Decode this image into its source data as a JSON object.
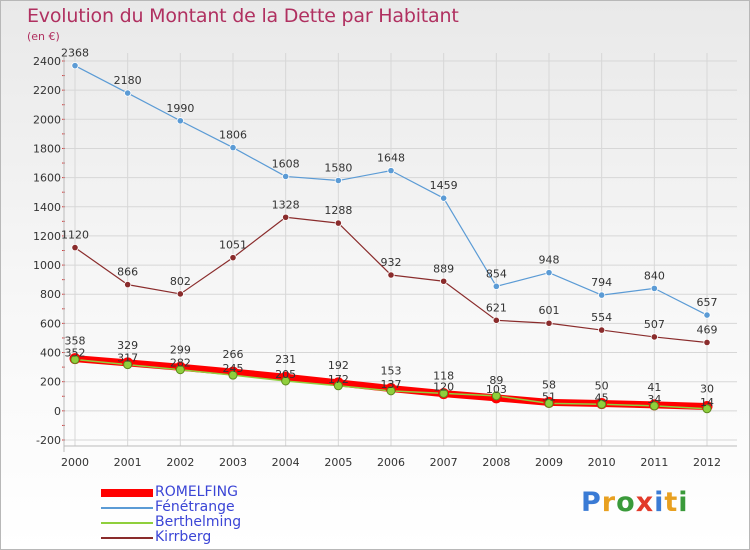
{
  "header": {
    "title": "Evolution du Montant de la Dette par Habitant",
    "subtitle": "(en €)"
  },
  "brand": {
    "letters": [
      {
        "ch": "P",
        "color": "#3a7bd5"
      },
      {
        "ch": "r",
        "color": "#e8a020"
      },
      {
        "ch": "o",
        "color": "#3a9a3a"
      },
      {
        "ch": "x",
        "color": "#e23a2a"
      },
      {
        "ch": "i",
        "color": "#3a7bd5"
      },
      {
        "ch": "t",
        "color": "#e8a020"
      },
      {
        "ch": "i",
        "color": "#3a9a3a"
      }
    ]
  },
  "chart_data": {
    "type": "line",
    "title": "Evolution du Montant de la Dette par Habitant",
    "subtitle": "(en €)",
    "x": [
      2000,
      2001,
      2002,
      2003,
      2004,
      2005,
      2006,
      2007,
      2008,
      2009,
      2010,
      2011,
      2012
    ],
    "ylim": [
      -200,
      2400
    ],
    "yticks": [
      -200,
      0,
      200,
      400,
      600,
      800,
      1000,
      1200,
      1400,
      1600,
      1800,
      2000,
      2200,
      2400
    ],
    "grid": true,
    "legend_position": "bottom-left",
    "series": [
      {
        "name": "ROMELFING",
        "color": "#ff0000",
        "values": [
          358,
          329,
          299,
          266,
          231,
          192,
          153,
          118,
          89,
          58,
          50,
          41,
          30
        ],
        "labels_shown": [
          true,
          true,
          true,
          true,
          true,
          true,
          true,
          true,
          true,
          true,
          true,
          true,
          true
        ]
      },
      {
        "name": "Fénétrange",
        "color": "#5b9bd5",
        "values": [
          2368,
          2180,
          1990,
          1806,
          1608,
          1580,
          1648,
          1459,
          854,
          948,
          794,
          840,
          657
        ],
        "labels_shown": [
          true,
          true,
          true,
          true,
          true,
          true,
          true,
          true,
          true,
          true,
          true,
          true,
          true
        ]
      },
      {
        "name": "Berthelming",
        "color": "#8fcf3c",
        "values": [
          352,
          317,
          282,
          245,
          205,
          172,
          137,
          120,
          103,
          51,
          45,
          34,
          14
        ],
        "labels_shown": [
          true,
          true,
          true,
          true,
          true,
          true,
          true,
          true,
          true,
          true,
          true,
          true,
          true
        ]
      },
      {
        "name": "Kirrberg",
        "color": "#8a2c2c",
        "values": [
          1120,
          866,
          802,
          1051,
          1328,
          1288,
          932,
          889,
          621,
          601,
          554,
          507,
          469
        ],
        "labels_shown": [
          true,
          true,
          true,
          true,
          true,
          true,
          true,
          true,
          true,
          true,
          true,
          true,
          true
        ]
      }
    ]
  }
}
